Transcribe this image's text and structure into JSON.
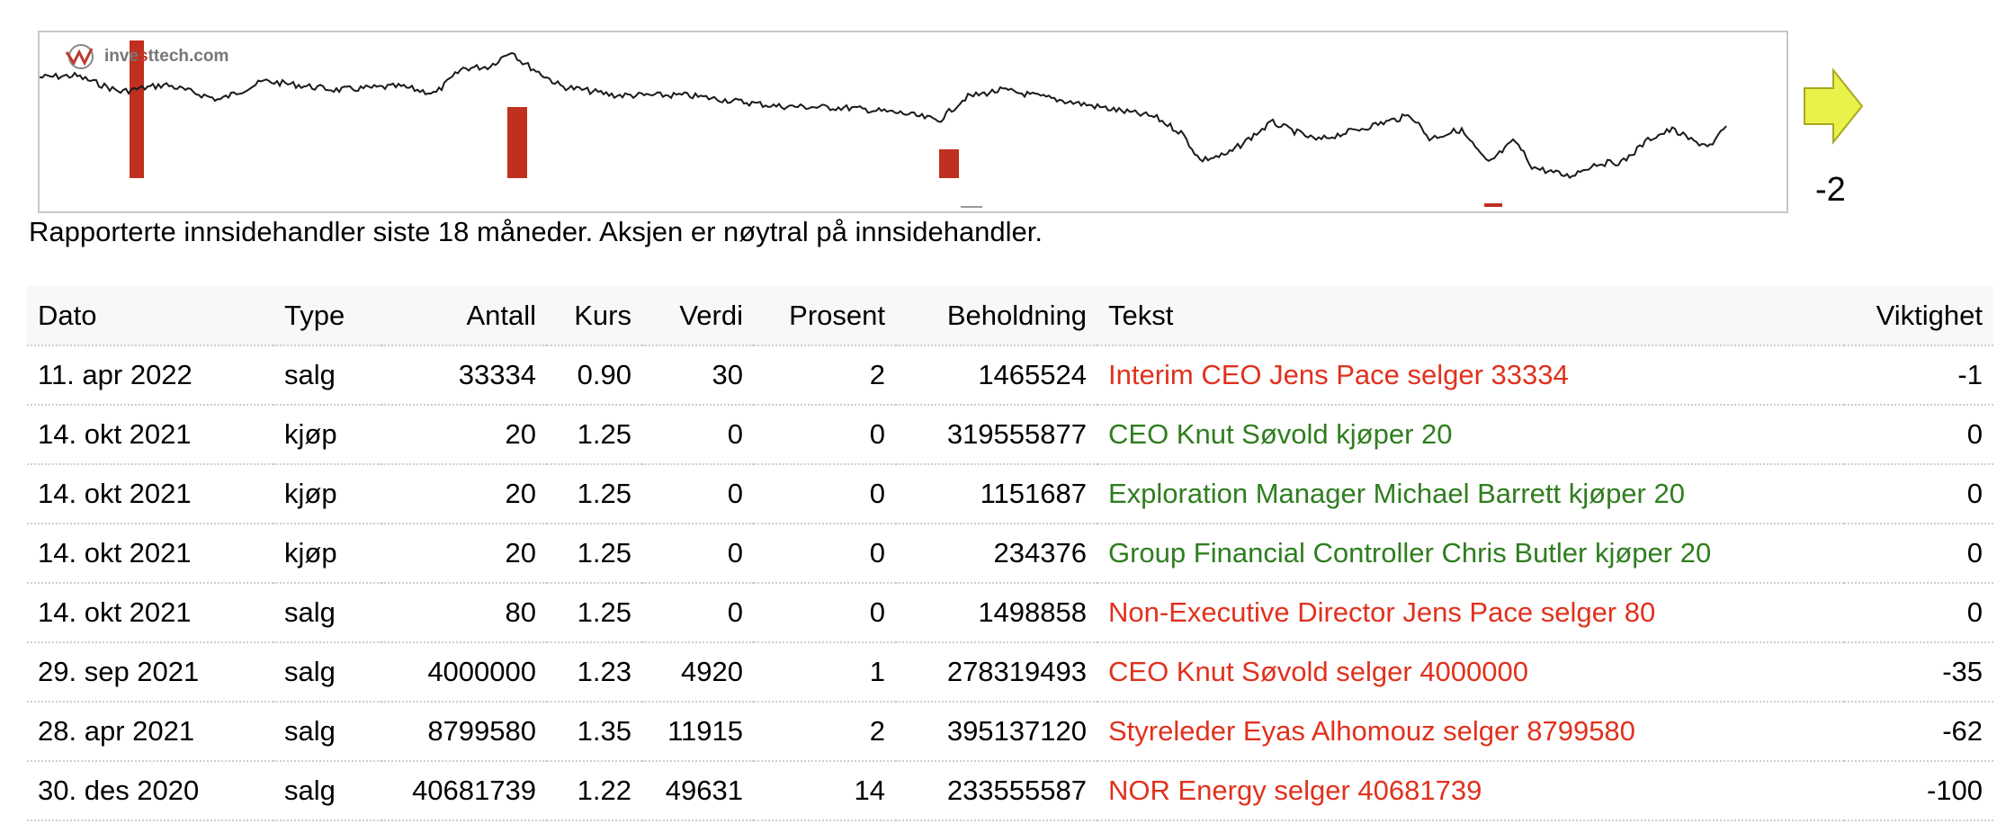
{
  "chart": {
    "logo_text_pre": "inve",
    "logo_text_mid": "s",
    "logo_text_post": "ttech.com",
    "trend_score": "-2",
    "trend_arrow_color": "#e8f24a",
    "bar_color": "#c0301f",
    "line_color": "#1a1a1a",
    "icon_arrow": "right-arrow-icon"
  },
  "caption": "Rapporterte innsidehandler siste 18 måneder. Aksjen er nøytral på innsidehandler.",
  "table": {
    "headers": {
      "dato": "Dato",
      "type": "Type",
      "antall": "Antall",
      "kurs": "Kurs",
      "verdi": "Verdi",
      "prosent": "Prosent",
      "beholdning": "Beholdning",
      "tekst": "Tekst",
      "viktighet": "Viktighet"
    },
    "rows": [
      {
        "dato": "11. apr 2022",
        "type": "salg",
        "antall": "33334",
        "kurs": "0.90",
        "verdi": "30",
        "prosent": "2",
        "beholdning": "1465524",
        "tekst": "Interim CEO Jens Pace selger 33334",
        "viktighet": "-1"
      },
      {
        "dato": "14. okt 2021",
        "type": "kjøp",
        "antall": "20",
        "kurs": "1.25",
        "verdi": "0",
        "prosent": "0",
        "beholdning": "319555877",
        "tekst": "CEO Knut Søvold kjøper 20",
        "viktighet": "0"
      },
      {
        "dato": "14. okt 2021",
        "type": "kjøp",
        "antall": "20",
        "kurs": "1.25",
        "verdi": "0",
        "prosent": "0",
        "beholdning": "1151687",
        "tekst": "Exploration Manager Michael Barrett kjøper 20",
        "viktighet": "0"
      },
      {
        "dato": "14. okt 2021",
        "type": "kjøp",
        "antall": "20",
        "kurs": "1.25",
        "verdi": "0",
        "prosent": "0",
        "beholdning": "234376",
        "tekst": "Group Financial Controller Chris Butler kjøper 20",
        "viktighet": "0"
      },
      {
        "dato": "14. okt 2021",
        "type": "salg",
        "antall": "80",
        "kurs": "1.25",
        "verdi": "0",
        "prosent": "0",
        "beholdning": "1498858",
        "tekst": "Non-Executive Director Jens Pace selger 80",
        "viktighet": "0"
      },
      {
        "dato": "29. sep 2021",
        "type": "salg",
        "antall": "4000000",
        "kurs": "1.23",
        "verdi": "4920",
        "prosent": "1",
        "beholdning": "278319493",
        "tekst": "CEO Knut Søvold selger 4000000",
        "viktighet": "-35"
      },
      {
        "dato": "28. apr 2021",
        "type": "salg",
        "antall": "8799580",
        "kurs": "1.35",
        "verdi": "11915",
        "prosent": "2",
        "beholdning": "395137120",
        "tekst": "Styreleder Eyas Alhomouz selger 8799580",
        "viktighet": "-62"
      },
      {
        "dato": "30. des 2020",
        "type": "salg",
        "antall": "40681739",
        "kurs": "1.22",
        "verdi": "49631",
        "prosent": "14",
        "beholdning": "233555587",
        "tekst": "NOR Energy selger 40681739",
        "viktighet": "-100"
      }
    ]
  }
}
